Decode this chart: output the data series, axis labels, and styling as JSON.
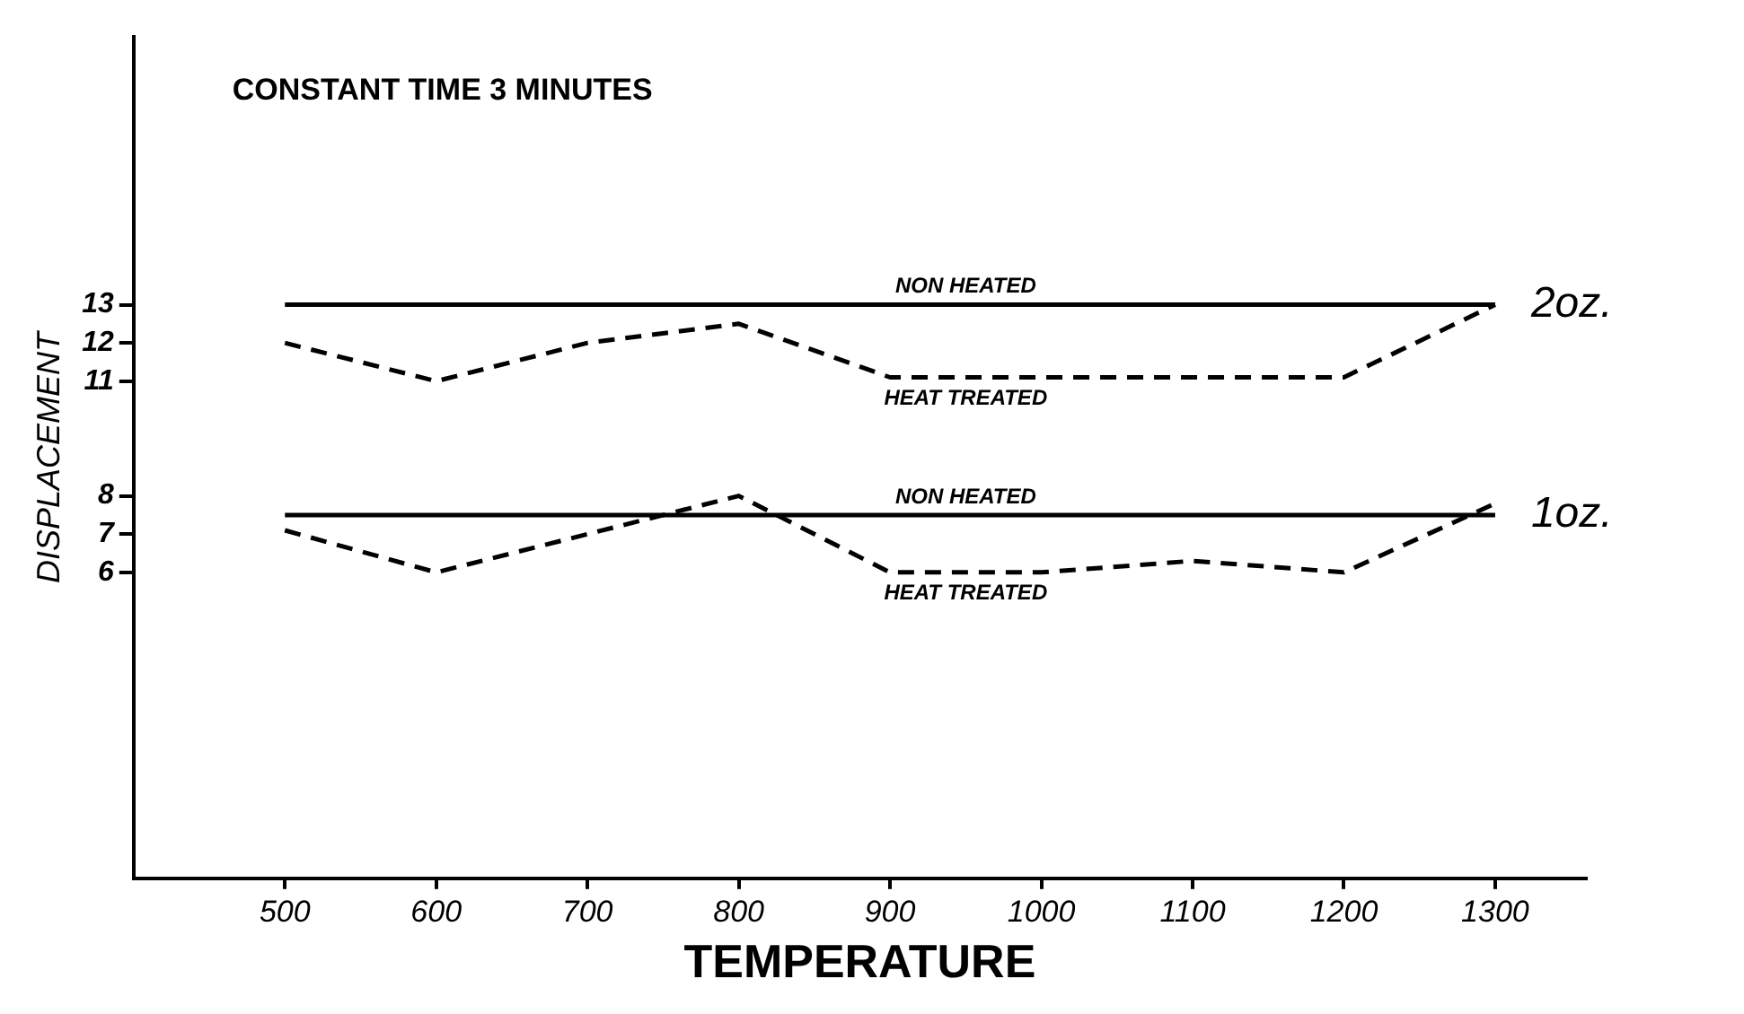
{
  "chart_data": {
    "type": "line",
    "title": "CONSTANT TIME 3 MINUTES",
    "xlabel": "TEMPERATURE",
    "ylabel": "DISPLACEMENT",
    "x": [
      500,
      600,
      700,
      800,
      900,
      1000,
      1100,
      1200,
      1300
    ],
    "series": [
      {
        "name": "NON HEATED",
        "color": "#000000",
        "line_style": "solid",
        "values": [
          13,
          13,
          13,
          13,
          13,
          13,
          13,
          13,
          13
        ]
      },
      {
        "name": "HEAT TREATED",
        "color": "#000000",
        "line_style": "dashed",
        "values": [
          12,
          11,
          12,
          12.5,
          11.1,
          11.1,
          11.1,
          11.1,
          13
        ]
      },
      {
        "name": "NON HEATED",
        "color": "#000000",
        "line_style": "solid",
        "values": [
          7.5,
          7.5,
          7.5,
          7.5,
          7.5,
          7.5,
          7.5,
          7.5,
          7.5
        ]
      },
      {
        "name": "HEAT TREATED",
        "color": "#000000",
        "line_style": "dashed",
        "values": [
          7.1,
          6,
          7,
          8,
          6,
          6,
          6.3,
          6,
          7.8
        ]
      }
    ],
    "annotations": [
      {
        "text": "2oz.",
        "x": 1300,
        "y": 13
      },
      {
        "text": "1oz.",
        "x": 1300,
        "y": 7.5
      }
    ],
    "xlim": [
      400,
      1360
    ],
    "xticks": [
      500,
      600,
      700,
      800,
      900,
      1000,
      1100,
      1200,
      1300
    ],
    "ylim": [
      -2,
      20
    ],
    "yticks": [
      6,
      7,
      8,
      11,
      12,
      13
    ],
    "grid": false,
    "legend": false,
    "marker": "none"
  }
}
